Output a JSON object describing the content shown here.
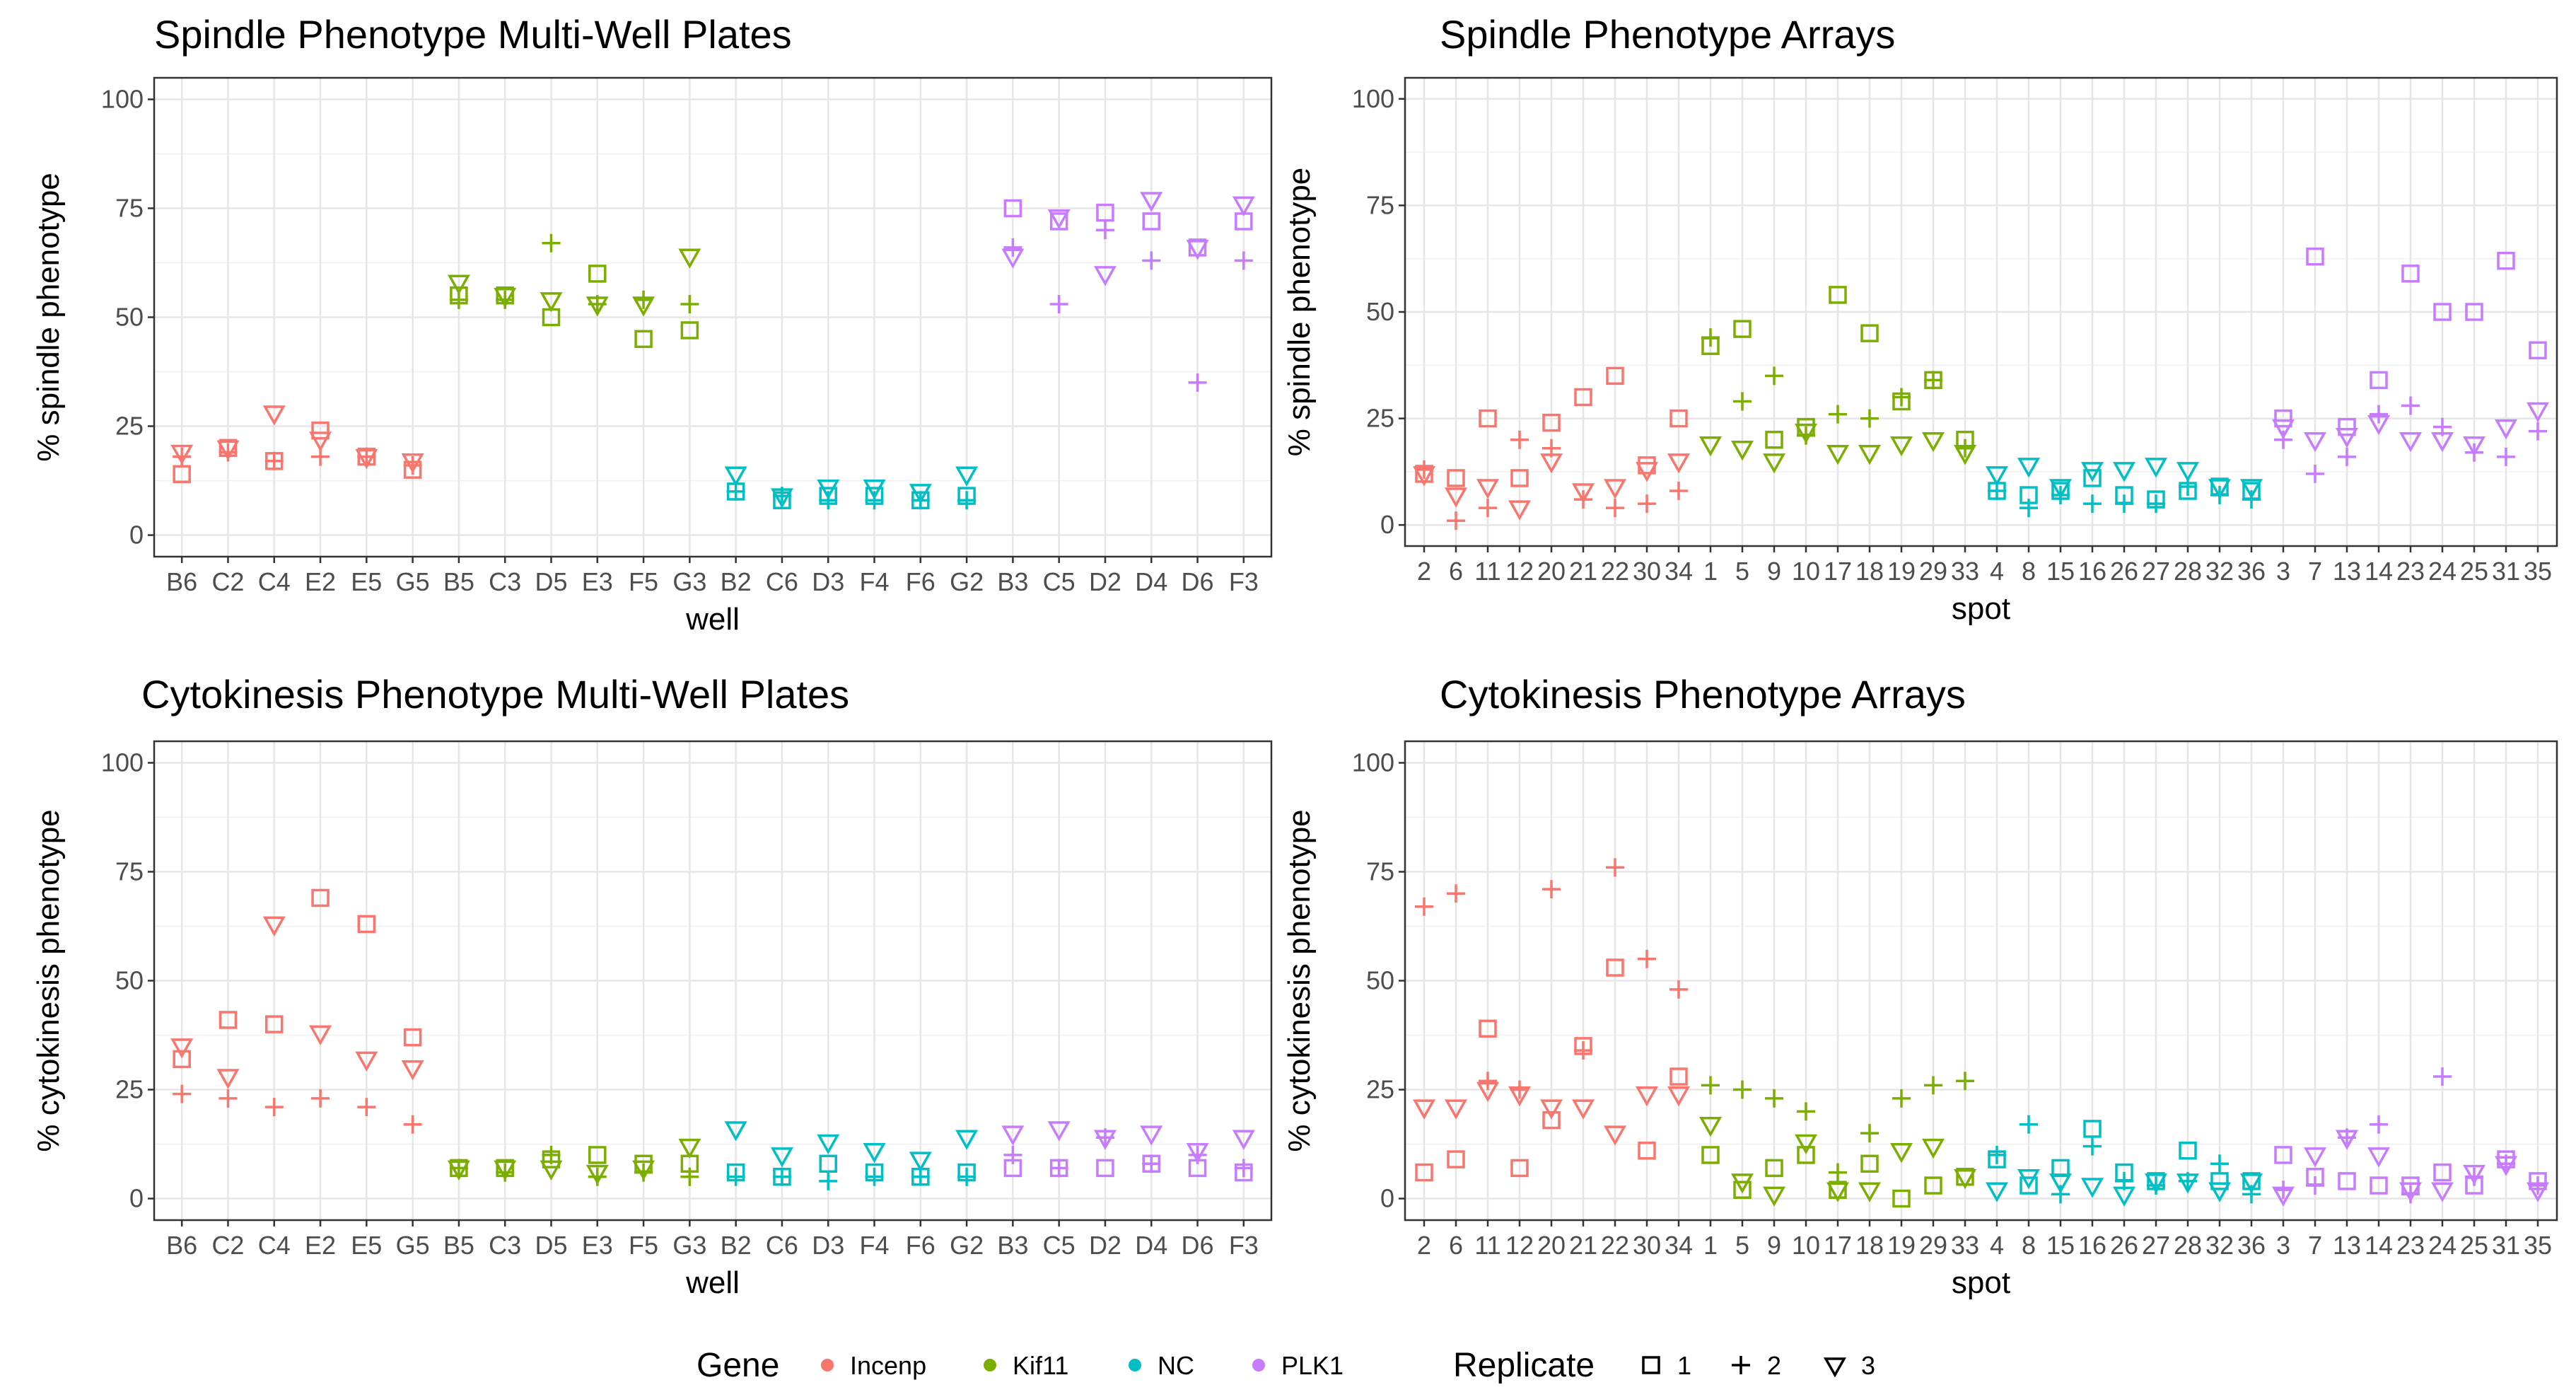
{
  "chart_data": [
    {
      "type": "scatter",
      "title": "Spindle Phenotype Multi-Well Plates",
      "xlabel": "well",
      "ylabel": "% spindle phenotype",
      "ylim": [
        0,
        100
      ],
      "yticks": [
        "0",
        "25",
        "50",
        "75",
        "100"
      ],
      "categories": [
        "B6",
        "C2",
        "C4",
        "E2",
        "E5",
        "G5",
        "B5",
        "C3",
        "D5",
        "E3",
        "F5",
        "G3",
        "B2",
        "C6",
        "D3",
        "F4",
        "F6",
        "G2",
        "B3",
        "C5",
        "D2",
        "D4",
        "D6",
        "F3"
      ],
      "category_gene": [
        "Incenp",
        "Incenp",
        "Incenp",
        "Incenp",
        "Incenp",
        "Incenp",
        "Kif11",
        "Kif11",
        "Kif11",
        "Kif11",
        "Kif11",
        "Kif11",
        "NC",
        "NC",
        "NC",
        "NC",
        "NC",
        "NC",
        "PLK1",
        "PLK1",
        "PLK1",
        "PLK1",
        "PLK1",
        "PLK1"
      ],
      "series": [
        {
          "name": "1",
          "values": [
            14,
            20,
            17,
            24,
            18,
            15,
            55,
            55,
            50,
            60,
            45,
            47,
            10,
            8,
            9,
            9,
            8,
            9,
            75,
            72,
            74,
            72,
            66,
            72
          ]
        },
        {
          "name": "2",
          "values": [
            18,
            19,
            17,
            18,
            18,
            16,
            54,
            54,
            67,
            53,
            54,
            53,
            10,
            9,
            8,
            8,
            8,
            8,
            66,
            53,
            70,
            63,
            35,
            63
          ]
        },
        {
          "name": "3",
          "values": [
            19,
            20,
            28,
            22,
            18,
            17,
            58,
            55,
            54,
            53,
            53,
            64,
            14,
            9,
            11,
            11,
            10,
            14,
            64,
            73,
            60,
            77,
            66,
            76
          ]
        }
      ]
    },
    {
      "type": "scatter",
      "title": "Spindle Phenotype Arrays",
      "xlabel": "spot",
      "ylabel": "% spindle phenotype",
      "ylim": [
        0,
        100
      ],
      "yticks": [
        "0",
        "25",
        "50",
        "75",
        "100"
      ],
      "categories": [
        "2",
        "6",
        "11",
        "12",
        "20",
        "21",
        "22",
        "30",
        "34",
        "1",
        "5",
        "9",
        "10",
        "17",
        "18",
        "19",
        "29",
        "33",
        "4",
        "8",
        "15",
        "16",
        "26",
        "27",
        "28",
        "32",
        "36",
        "3",
        "7",
        "13",
        "14",
        "23",
        "24",
        "25",
        "31",
        "35"
      ],
      "category_gene": [
        "Incenp",
        "Incenp",
        "Incenp",
        "Incenp",
        "Incenp",
        "Incenp",
        "Incenp",
        "Incenp",
        "Incenp",
        "Kif11",
        "Kif11",
        "Kif11",
        "Kif11",
        "Kif11",
        "Kif11",
        "Kif11",
        "Kif11",
        "Kif11",
        "NC",
        "NC",
        "NC",
        "NC",
        "NC",
        "NC",
        "NC",
        "NC",
        "NC",
        "PLK1",
        "PLK1",
        "PLK1",
        "PLK1",
        "PLK1",
        "PLK1",
        "PLK1",
        "PLK1",
        "PLK1"
      ],
      "series": [
        {
          "name": "1",
          "values": [
            12,
            11,
            25,
            11,
            24,
            30,
            35,
            14,
            25,
            42,
            46,
            20,
            23,
            54,
            45,
            29,
            34,
            20,
            8,
            7,
            8,
            11,
            7,
            6,
            8,
            9,
            8,
            25,
            63,
            23,
            34,
            59,
            50,
            50,
            62,
            41
          ]
        },
        {
          "name": "2",
          "values": [
            13,
            1,
            4,
            20,
            18,
            6,
            4,
            5,
            8,
            44,
            29,
            35,
            21,
            26,
            25,
            30,
            34,
            18,
            8,
            4,
            7,
            5,
            5,
            5,
            9,
            7,
            6,
            20,
            12,
            16,
            26,
            28,
            23,
            17,
            16,
            22
          ]
        },
        {
          "name": "3",
          "values": [
            12,
            7,
            9,
            4,
            15,
            8,
            9,
            13,
            15,
            19,
            18,
            15,
            22,
            17,
            17,
            19,
            20,
            17,
            12,
            14,
            9,
            13,
            13,
            14,
            13,
            9,
            9,
            23,
            20,
            21,
            24,
            20,
            20,
            19,
            23,
            27
          ]
        }
      ]
    },
    {
      "type": "scatter",
      "title": "Cytokinesis Phenotype Multi-Well Plates",
      "xlabel": "well",
      "ylabel": "% cytokinesis phenotype",
      "ylim": [
        0,
        100
      ],
      "yticks": [
        "0",
        "25",
        "50",
        "75",
        "100"
      ],
      "categories": [
        "B6",
        "C2",
        "C4",
        "E2",
        "E5",
        "G5",
        "B5",
        "C3",
        "D5",
        "E3",
        "F5",
        "G3",
        "B2",
        "C6",
        "D3",
        "F4",
        "F6",
        "G2",
        "B3",
        "C5",
        "D2",
        "D4",
        "D6",
        "F3"
      ],
      "category_gene": [
        "Incenp",
        "Incenp",
        "Incenp",
        "Incenp",
        "Incenp",
        "Incenp",
        "Kif11",
        "Kif11",
        "Kif11",
        "Kif11",
        "Kif11",
        "Kif11",
        "NC",
        "NC",
        "NC",
        "NC",
        "NC",
        "NC",
        "PLK1",
        "PLK1",
        "PLK1",
        "PLK1",
        "PLK1",
        "PLK1"
      ],
      "series": [
        {
          "name": "1",
          "values": [
            32,
            41,
            40,
            69,
            63,
            37,
            7,
            7,
            9,
            10,
            8,
            8,
            6,
            5,
            8,
            6,
            5,
            6,
            7,
            7,
            7,
            8,
            7,
            6
          ]
        },
        {
          "name": "2",
          "values": [
            24,
            23,
            21,
            23,
            21,
            17,
            7,
            6,
            10,
            5,
            6,
            5,
            5,
            5,
            4,
            5,
            5,
            5,
            10,
            7,
            14,
            8,
            10,
            7
          ]
        },
        {
          "name": "3",
          "values": [
            35,
            28,
            63,
            38,
            32,
            30,
            7,
            7,
            7,
            6,
            7,
            12,
            16,
            10,
            13,
            11,
            9,
            14,
            15,
            16,
            14,
            15,
            11,
            14
          ]
        }
      ]
    },
    {
      "type": "scatter",
      "title": "Cytokinesis Phenotype Arrays",
      "xlabel": "spot",
      "ylabel": "% cytokinesis phenotype",
      "ylim": [
        0,
        100
      ],
      "yticks": [
        "0",
        "25",
        "50",
        "75",
        "100"
      ],
      "categories": [
        "2",
        "6",
        "11",
        "12",
        "20",
        "21",
        "22",
        "30",
        "34",
        "1",
        "5",
        "9",
        "10",
        "17",
        "18",
        "19",
        "29",
        "33",
        "4",
        "8",
        "15",
        "16",
        "26",
        "27",
        "28",
        "32",
        "36",
        "3",
        "7",
        "13",
        "14",
        "23",
        "24",
        "25",
        "31",
        "35"
      ],
      "category_gene": [
        "Incenp",
        "Incenp",
        "Incenp",
        "Incenp",
        "Incenp",
        "Incenp",
        "Incenp",
        "Incenp",
        "Incenp",
        "Kif11",
        "Kif11",
        "Kif11",
        "Kif11",
        "Kif11",
        "Kif11",
        "Kif11",
        "Kif11",
        "Kif11",
        "NC",
        "NC",
        "NC",
        "NC",
        "NC",
        "NC",
        "NC",
        "NC",
        "NC",
        "PLK1",
        "PLK1",
        "PLK1",
        "PLK1",
        "PLK1",
        "PLK1",
        "PLK1",
        "PLK1",
        "PLK1"
      ],
      "series": [
        {
          "name": "1",
          "values": [
            6,
            9,
            39,
            7,
            18,
            35,
            53,
            11,
            28,
            10,
            2,
            7,
            10,
            2,
            8,
            0,
            3,
            5,
            9,
            3,
            7,
            16,
            6,
            4,
            11,
            4,
            4,
            10,
            5,
            4,
            3,
            3,
            6,
            3,
            9,
            4
          ]
        },
        {
          "name": "2",
          "values": [
            67,
            70,
            27,
            25,
            71,
            34,
            76,
            55,
            48,
            26,
            25,
            23,
            20,
            6,
            15,
            23,
            26,
            27,
            10,
            17,
            1,
            12,
            4,
            3,
            4,
            8,
            1,
            2,
            3,
            14,
            17,
            1,
            28,
            5,
            8,
            3
          ]
        },
        {
          "name": "3",
          "values": [
            21,
            21,
            25,
            24,
            21,
            21,
            15,
            24,
            24,
            17,
            4,
            1,
            13,
            2,
            2,
            11,
            12,
            5,
            2,
            5,
            4,
            3,
            1,
            4,
            4,
            2,
            4,
            1,
            10,
            14,
            10,
            2,
            2,
            6,
            8,
            2
          ]
        }
      ]
    }
  ],
  "legend": {
    "gene_title": "Gene",
    "genes": [
      {
        "label": "Incenp",
        "color": "#F8766D"
      },
      {
        "label": "Kif11",
        "color": "#7CAE00"
      },
      {
        "label": "NC",
        "color": "#00BFC4"
      },
      {
        "label": "PLK1",
        "color": "#C77CFF"
      }
    ],
    "replicate_title": "Replicate",
    "replicates": [
      {
        "label": "1",
        "shape": "square"
      },
      {
        "label": "2",
        "shape": "plus"
      },
      {
        "label": "3",
        "shape": "triangle-down"
      }
    ]
  }
}
